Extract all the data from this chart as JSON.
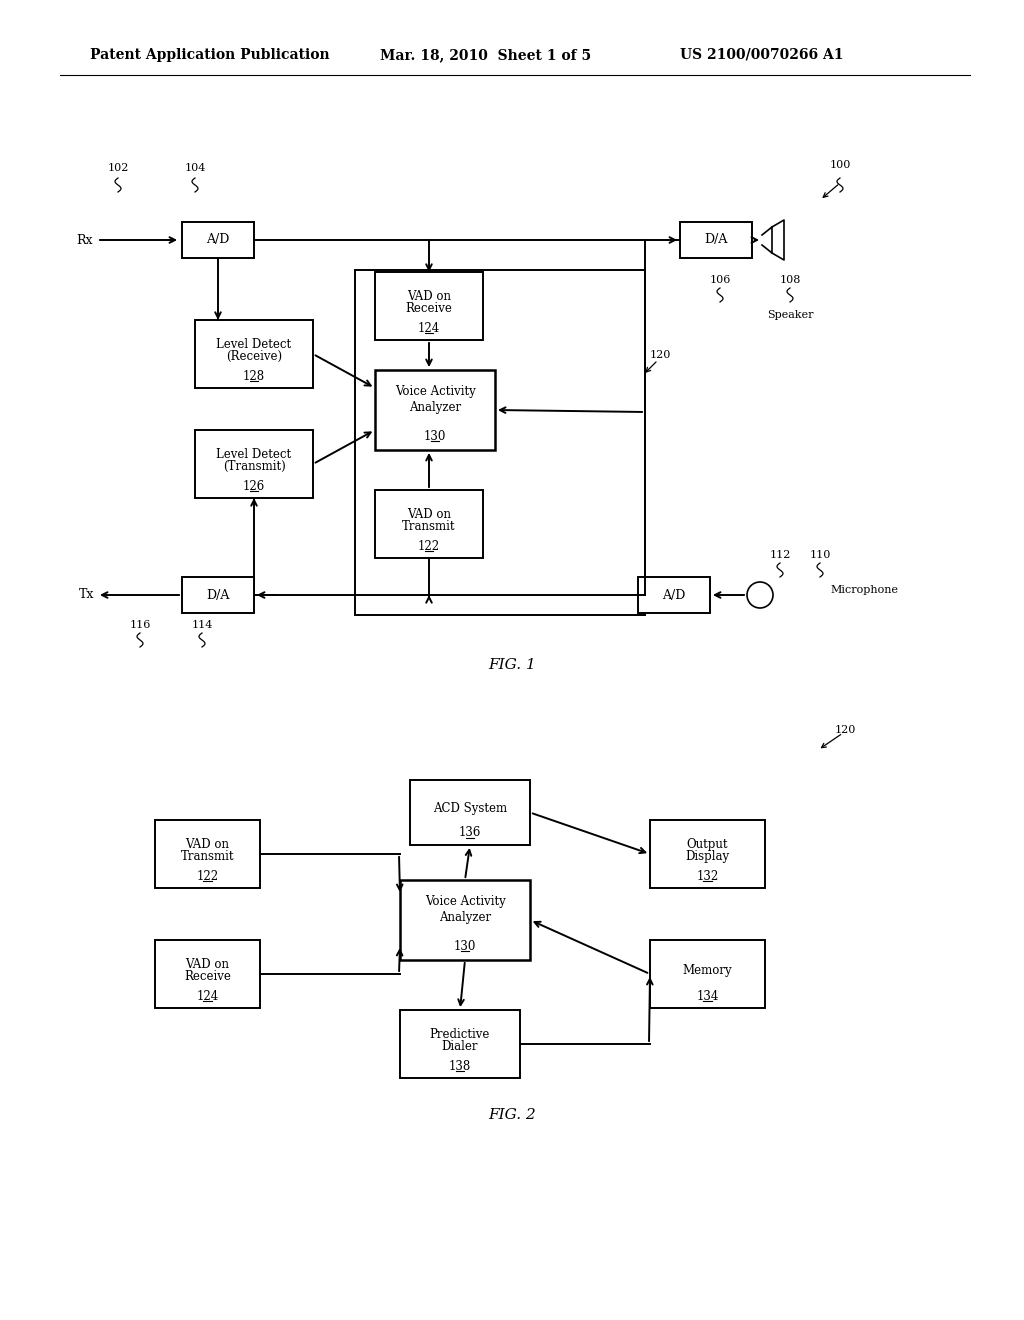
{
  "header_left": "Patent Application Publication",
  "header_mid": "Mar. 18, 2010  Sheet 1 of 5",
  "header_right": "US 2100/0070266 A1",
  "fig1_label": "FIG. 1",
  "fig2_label": "FIG. 2",
  "bg": "#ffffff"
}
